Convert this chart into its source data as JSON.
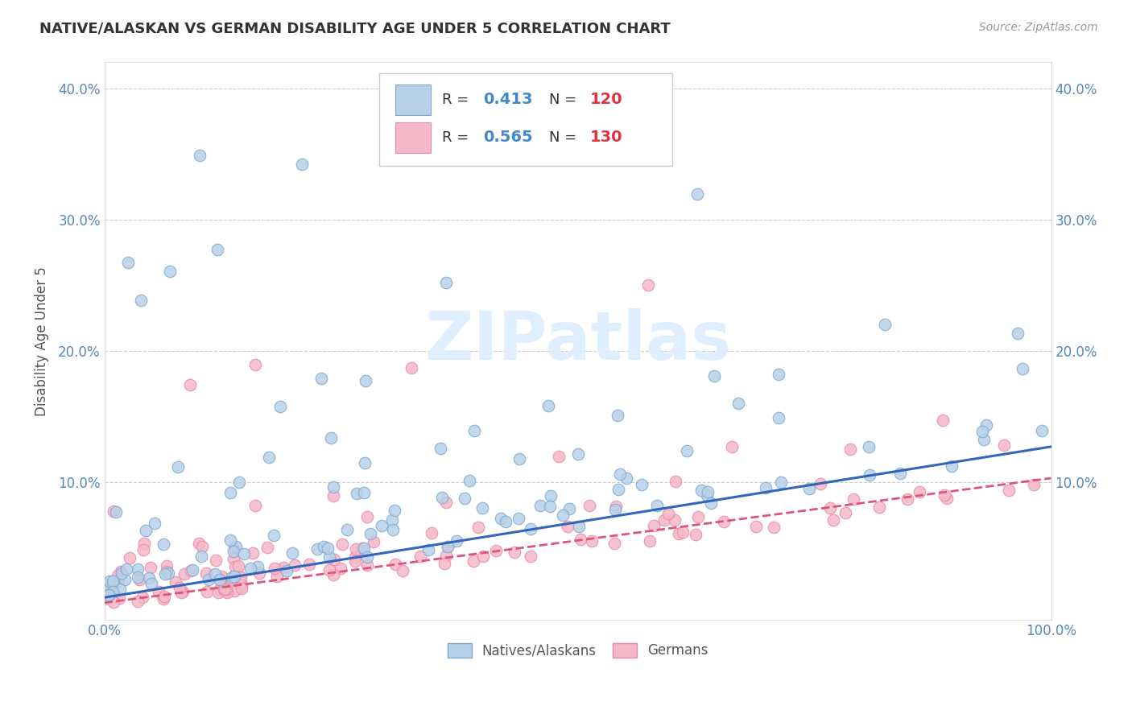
{
  "title": "NATIVE/ALASKAN VS GERMAN DISABILITY AGE UNDER 5 CORRELATION CHART",
  "source": "Source: ZipAtlas.com",
  "ylabel": "Disability Age Under 5",
  "xlim": [
    0,
    1.0
  ],
  "ylim": [
    -0.005,
    0.42
  ],
  "yticks": [
    0.0,
    0.1,
    0.2,
    0.3,
    0.4
  ],
  "yticklabels": [
    "",
    "10.0%",
    "20.0%",
    "30.0%",
    "40.0%"
  ],
  "xtick_positions": [
    0.0,
    1.0
  ],
  "xticklabels": [
    "0.0%",
    "100.0%"
  ],
  "native_color": "#b8d0e8",
  "german_color": "#f5b8c8",
  "native_edge": "#7aaad0",
  "german_edge": "#e888a8",
  "regression_native_color": "#3366bb",
  "regression_german_color": "#dd5577",
  "R_native": 0.413,
  "N_native": 120,
  "R_german": 0.565,
  "N_german": 130,
  "background_color": "#ffffff",
  "grid_color": "#cccccc",
  "title_color": "#333333",
  "watermark": "ZIPatlas",
  "watermark_color": "#ddeeff",
  "axis_tick_color": "#5588bb"
}
